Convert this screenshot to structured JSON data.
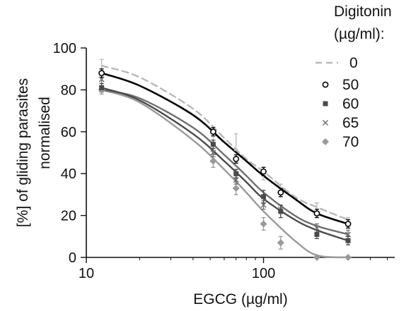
{
  "chart_data": {
    "type": "scatter",
    "title": "",
    "xlabel": "EGCG (µg/ml)",
    "ylabel_lines": [
      "[%] of gliding parasites",
      "normalised"
    ],
    "x_scale": "log",
    "xlim": [
      10,
      550
    ],
    "ylim": [
      0,
      100
    ],
    "x_ticks": [
      10,
      100
    ],
    "y_ticks": [
      0,
      20,
      40,
      60,
      80,
      100
    ],
    "x_tick_labels": [
      "10",
      "100"
    ],
    "y_tick_labels": [
      "0",
      "20",
      "40",
      "60",
      "80",
      "100"
    ],
    "grid": false,
    "legend": {
      "title_lines": [
        "Digitonin",
        "(µg/ml):"
      ],
      "placement": "top-right",
      "entries": [
        "0",
        "50",
        "60",
        "65",
        "70"
      ]
    },
    "series": [
      {
        "name": "0",
        "color": "#b8b8b8",
        "marker": "none",
        "line": "dashed",
        "x": [
          12.2,
          52,
          70,
          100,
          125,
          200,
          300
        ],
        "y": [
          91.5,
          56,
          55,
          40,
          33,
          23,
          17
        ],
        "err": [
          3,
          3,
          4,
          3,
          2,
          3,
          2
        ],
        "fit_x": [
          12.2,
          20,
          40,
          60,
          80,
          100,
          150,
          200,
          300
        ],
        "fit_y": [
          91.5,
          86,
          71,
          57,
          47,
          41,
          29,
          24,
          18
        ]
      },
      {
        "name": "50",
        "color": "#000000",
        "marker": "circle",
        "line": "solid",
        "x": [
          12.2,
          52,
          70,
          100,
          125,
          200,
          300
        ],
        "y": [
          88,
          60,
          47,
          41,
          31,
          21,
          16
        ],
        "err": [
          2,
          2,
          2,
          2,
          2,
          2,
          2
        ],
        "fit_x": [
          12.2,
          20,
          40,
          60,
          80,
          100,
          150,
          200,
          300
        ],
        "fit_y": [
          88,
          82,
          68,
          55,
          46,
          39,
          28,
          21,
          16
        ]
      },
      {
        "name": "60",
        "color": "#4a4a4a",
        "marker": "square",
        "line": "solid",
        "x": [
          12.2,
          52,
          70,
          100,
          125,
          200,
          300
        ],
        "y": [
          81,
          54,
          40,
          29,
          22,
          11,
          8
        ],
        "err": [
          2,
          2,
          2,
          3,
          3,
          2,
          2
        ],
        "fit_x": [
          12.2,
          20,
          40,
          60,
          80,
          100,
          150,
          200,
          300
        ],
        "fit_y": [
          81,
          75,
          59,
          46,
          36,
          28,
          18,
          13,
          8
        ]
      },
      {
        "name": "65",
        "color": "#6e6e6e",
        "marker": "x",
        "line": "solid",
        "x": [
          12.2,
          52,
          70,
          100,
          125,
          200,
          300
        ],
        "y": [
          85,
          50,
          37,
          25,
          23,
          14,
          11
        ],
        "err": [
          2,
          2,
          2,
          2,
          2,
          2,
          2
        ],
        "fit_x": [
          12.2,
          20,
          40,
          60,
          80,
          100,
          150,
          200,
          300
        ],
        "fit_y": [
          80,
          76,
          62,
          49,
          39,
          31,
          20,
          15,
          11
        ]
      },
      {
        "name": "70",
        "color": "#999999",
        "marker": "diamond",
        "line": "solid",
        "x": [
          12.2,
          52,
          70,
          100,
          125,
          200,
          300
        ],
        "y": [
          80,
          46,
          33,
          16,
          7,
          0,
          0
        ],
        "err": [
          2,
          3,
          3,
          3,
          3,
          0,
          0
        ],
        "fit_x": [
          12.2,
          20,
          40,
          60,
          80,
          100,
          150,
          200,
          300
        ],
        "fit_y": [
          80,
          74,
          56,
          42,
          31,
          22,
          8,
          1,
          0
        ]
      }
    ]
  }
}
